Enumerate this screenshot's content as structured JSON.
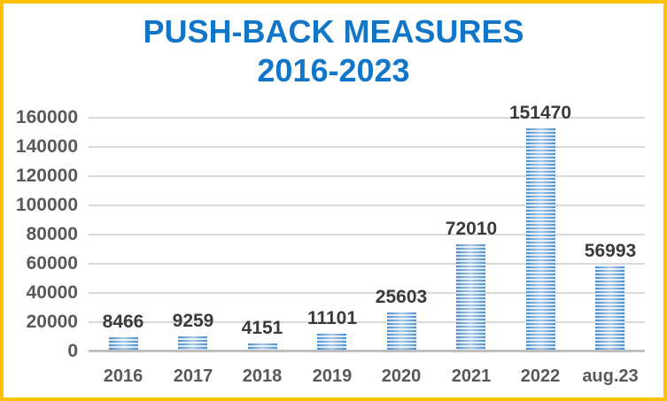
{
  "title": {
    "line1": "PUSH-BACK MEASURES",
    "line2": "2016-2023"
  },
  "chart_data": {
    "type": "bar",
    "title": "PUSH-BACK MEASURES 2016-2023",
    "categories": [
      "2016",
      "2017",
      "2018",
      "2019",
      "2020",
      "2021",
      "2022",
      "aug.23"
    ],
    "values": [
      8466,
      9259,
      4151,
      11101,
      25603,
      72010,
      151470,
      56993
    ],
    "data_labels": [
      8466,
      9259,
      4151,
      11101,
      25603,
      72010,
      151470,
      56993
    ],
    "xlabel": "",
    "ylabel": "",
    "ylim": [
      0,
      160000
    ],
    "yticks": [
      0,
      20000,
      40000,
      60000,
      80000,
      100000,
      120000,
      140000,
      160000
    ],
    "grid": true,
    "legend": "none",
    "bar_fill_style": "horizontal-stripes"
  },
  "colors": {
    "border": "#FFC000",
    "title": "#1276C8",
    "bar_stripe_dark": "#4A8CCB",
    "bar_stripe_light": "#D9E8F6",
    "gridline": "#D9D9D9",
    "axis_line": "#BFBFBF",
    "axis_text": "#595959",
    "value_text": "#3A3A3A"
  }
}
